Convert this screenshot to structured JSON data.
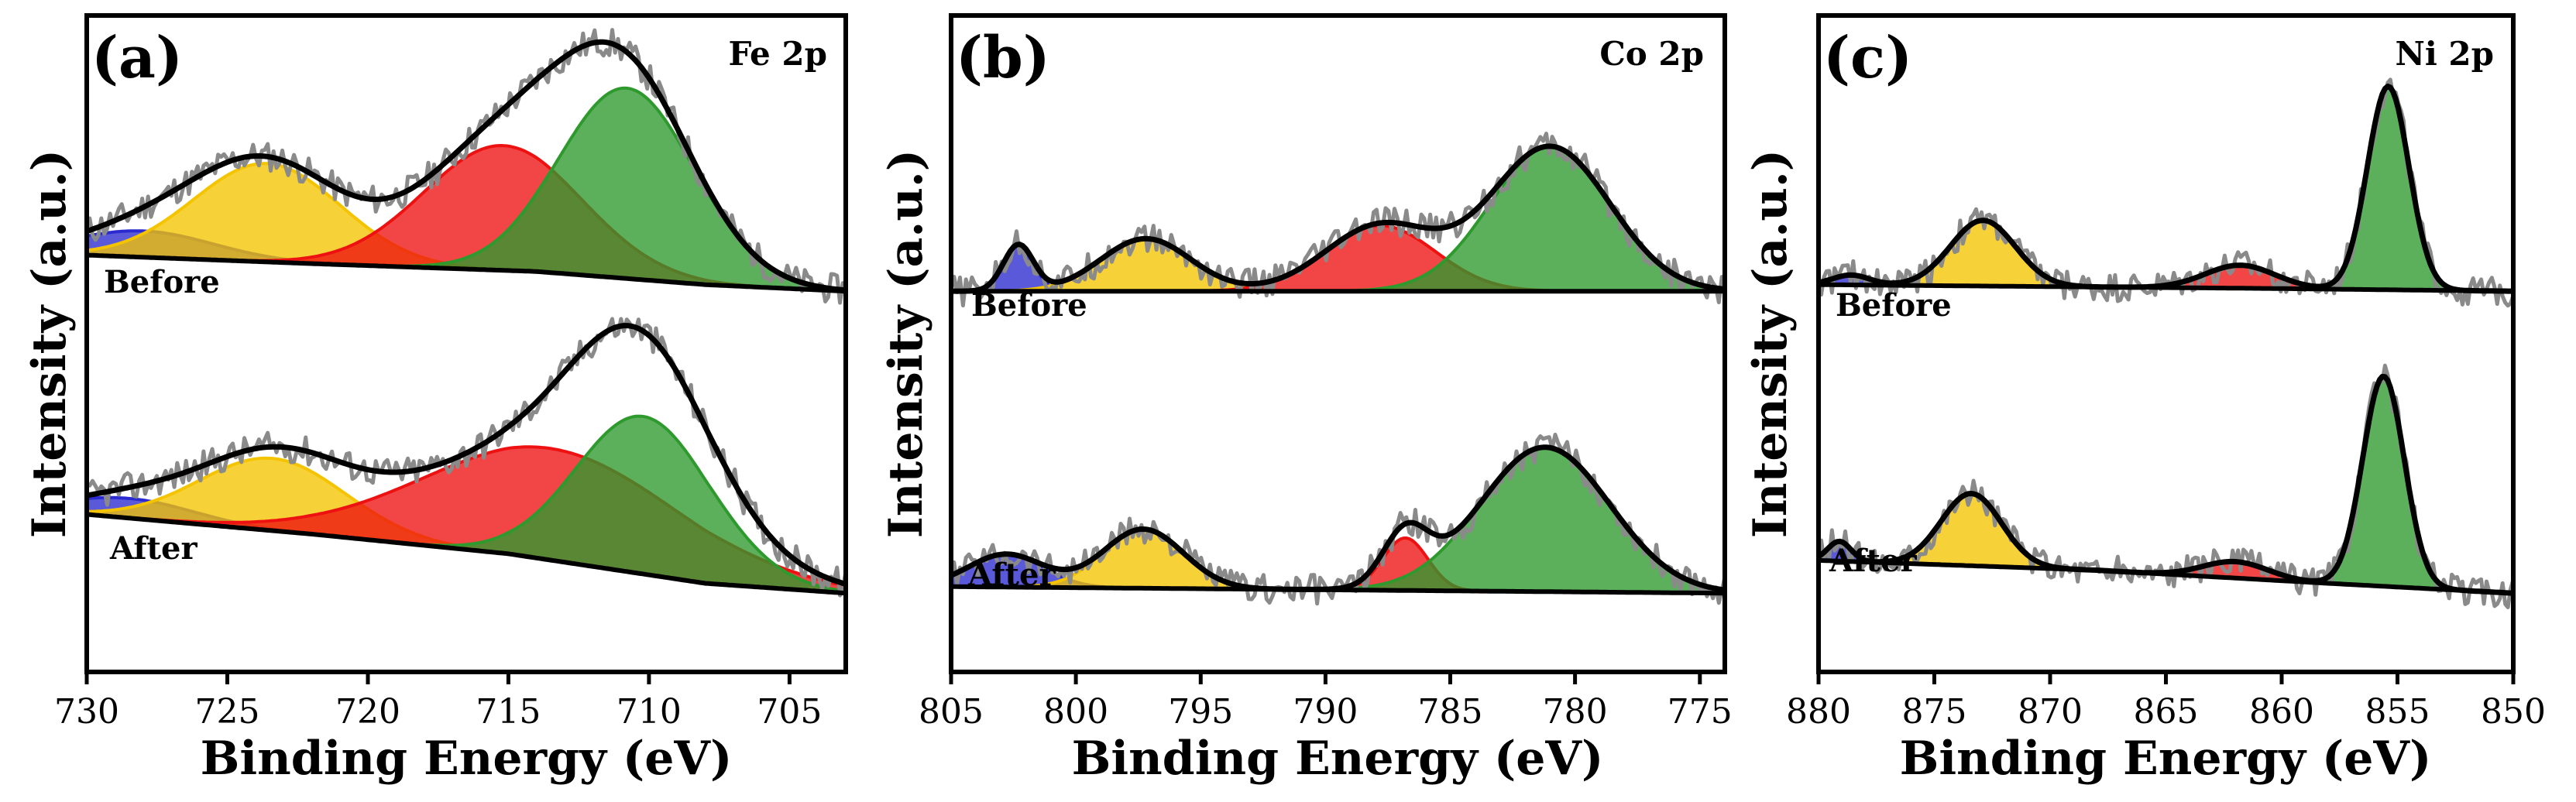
{
  "chart_data": [
    {
      "type": "line",
      "panel": "(a)",
      "element": "Fe 2p",
      "xlabel": "Binding Energy (eV)",
      "ylabel": "Intensity (a.u.)",
      "xlim": [
        730,
        703
      ],
      "ylim": [
        0,
        1
      ],
      "xticks": [
        730,
        725,
        720,
        715,
        710,
        705
      ],
      "annotations": [
        "Before",
        "After"
      ],
      "spectra": [
        {
          "name": "Before",
          "offset": 0.58,
          "baseline": [
            [
              730,
              0.055
            ],
            [
              722,
              0.042
            ],
            [
              714,
              0.03
            ],
            [
              708,
              0.01
            ],
            [
              703,
              0.0
            ]
          ],
          "peaks": [
            {
              "color": "#2a2ad0",
              "center": 728.0,
              "height": 0.04,
              "width": 2.5
            },
            {
              "color": "#f5c400",
              "center": 723.6,
              "height": 0.15,
              "width": 2.6
            },
            {
              "color": "#ee1111",
              "center": 715.2,
              "height": 0.19,
              "width": 2.8
            },
            {
              "color": "#2e9a2e",
              "center": 710.8,
              "height": 0.29,
              "width": 2.4
            }
          ]
        },
        {
          "name": "After",
          "offset": 0.12,
          "baseline": [
            [
              730,
              0.12
            ],
            [
              722,
              0.09
            ],
            [
              715,
              0.06
            ],
            [
              708,
              0.015
            ],
            [
              703,
              0.0
            ]
          ],
          "peaks": [
            {
              "color": "#2a2ad0",
              "center": 728.5,
              "height": 0.03,
              "width": 2.3
            },
            {
              "color": "#f5c400",
              "center": 723.4,
              "height": 0.11,
              "width": 2.6
            },
            {
              "color": "#ee1111",
              "center": 713.5,
              "height": 0.17,
              "width": 4.5
            },
            {
              "color": "#2e9a2e",
              "center": 710.2,
              "height": 0.24,
              "width": 2.4
            }
          ]
        }
      ]
    },
    {
      "type": "line",
      "panel": "(b)",
      "element": "Co 2p",
      "xlabel": "Binding Energy (eV)",
      "ylabel": "Intensity (a.u.)",
      "xlim": [
        805,
        774
      ],
      "ylim": [
        0,
        1
      ],
      "xticks": [
        805,
        800,
        795,
        790,
        785,
        780,
        775
      ],
      "annotations": [
        "Before",
        "After"
      ],
      "spectra": [
        {
          "name": "Before",
          "offset": 0.58,
          "baseline": [
            [
              805,
              0.0
            ],
            [
              774,
              0.0
            ]
          ],
          "peaks": [
            {
              "color": "#2a2ad0",
              "center": 802.3,
              "height": 0.07,
              "width": 0.6
            },
            {
              "color": "#f5c400",
              "center": 797.2,
              "height": 0.08,
              "width": 1.8
            },
            {
              "color": "#ee1111",
              "center": 787.8,
              "height": 0.1,
              "width": 2.2
            },
            {
              "color": "#2e9a2e",
              "center": 781.0,
              "height": 0.22,
              "width": 2.4
            }
          ]
        },
        {
          "name": "After",
          "offset": 0.12,
          "baseline": [
            [
              805,
              0.01
            ],
            [
              774,
              0.0
            ]
          ],
          "peaks": [
            {
              "color": "#2a2ad0",
              "center": 802.8,
              "height": 0.05,
              "width": 1.5
            },
            {
              "color": "#f5c400",
              "center": 797.3,
              "height": 0.09,
              "width": 1.6
            },
            {
              "color": "#ee1111",
              "center": 786.8,
              "height": 0.08,
              "width": 0.9
            },
            {
              "color": "#2e9a2e",
              "center": 781.2,
              "height": 0.22,
              "width": 2.6
            }
          ]
        }
      ]
    },
    {
      "type": "line",
      "panel": "(c)",
      "element": "Ni 2p",
      "xlabel": "Binding Energy (eV)",
      "ylabel": "Intensity (a.u.)",
      "xlim": [
        880,
        850
      ],
      "ylim": [
        0,
        1
      ],
      "xticks": [
        880,
        875,
        870,
        865,
        860,
        855,
        850
      ],
      "annotations": [
        "Before",
        "After"
      ],
      "spectra": [
        {
          "name": "Before",
          "offset": 0.58,
          "baseline": [
            [
              880,
              0.01
            ],
            [
              860,
              0.004
            ],
            [
              850,
              0.0
            ]
          ],
          "peaks": [
            {
              "color": "#2a2ad0",
              "center": 878.6,
              "height": 0.015,
              "width": 0.8
            },
            {
              "color": "#f5c400",
              "center": 872.9,
              "height": 0.1,
              "width": 1.4
            },
            {
              "color": "#ee1111",
              "center": 861.8,
              "height": 0.035,
              "width": 1.5
            },
            {
              "color": "#2e9a2e",
              "center": 855.4,
              "height": 0.31,
              "width": 0.9
            }
          ]
        },
        {
          "name": "After",
          "offset": 0.12,
          "baseline": [
            [
              880,
              0.05
            ],
            [
              868,
              0.035
            ],
            [
              858,
              0.015
            ],
            [
              850,
              0.0
            ]
          ],
          "peaks": [
            {
              "color": "#2a2ad0",
              "center": 879.1,
              "height": 0.03,
              "width": 0.5
            },
            {
              "color": "#f5c400",
              "center": 873.4,
              "height": 0.11,
              "width": 1.3
            },
            {
              "color": "#ee1111",
              "center": 862.0,
              "height": 0.025,
              "width": 1.4
            },
            {
              "color": "#2e9a2e",
              "center": 855.6,
              "height": 0.32,
              "width": 0.9
            }
          ]
        }
      ]
    }
  ]
}
